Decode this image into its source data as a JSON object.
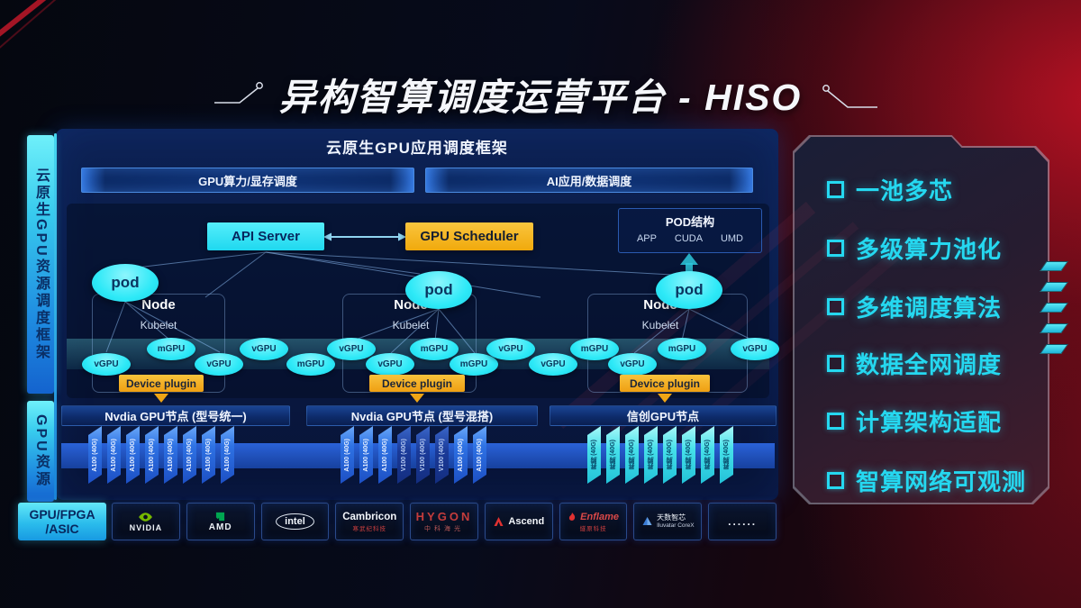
{
  "title": "异构智算调度运营平台 - HISO",
  "sidebar": {
    "framework": "云原生GPU资源调度框架",
    "resource": "GPU资源"
  },
  "scheduler_panel": {
    "header": "云原生GPU应用调度框架",
    "lanes": [
      {
        "label": "GPU算力/显存调度"
      },
      {
        "label": "AI应用/数据调度"
      }
    ],
    "api_server": "API Server",
    "gpu_scheduler": "GPU Scheduler",
    "pod_structure": {
      "title": "POD结构",
      "layers": [
        "APP",
        "CUDA",
        "UMD"
      ]
    },
    "nodes": [
      {
        "name": "Node",
        "agent": "Kubelet",
        "pod_label": "pod"
      },
      {
        "name": "Node",
        "agent": "Kubelet",
        "pod_label": "pod"
      },
      {
        "name": "Node",
        "agent": "Kubelet",
        "pod_label": "pod"
      }
    ],
    "gpu_units": [
      "vGPU",
      "mGPU",
      "vGPU",
      "vGPU",
      "mGPU",
      "vGPU",
      "vGPU",
      "mGPU",
      "mGPU",
      "vGPU",
      "vGPU",
      "mGPU",
      "vGPU",
      "mGPU",
      "vGPU"
    ],
    "device_plugin_label": "Device plugin",
    "node_groups": [
      {
        "label": "Nvdia GPU节点 (型号统一)",
        "cards": [
          "A100 (40G)",
          "A100 (40G)",
          "A100 (40G)",
          "A100 (40G)",
          "A100 (40G)",
          "A100 (40G)",
          "A100 (40G)",
          "A100 (40G)"
        ]
      },
      {
        "label": "Nvdia GPU节点 (型号混搭)",
        "cards": [
          "A100 (40G)",
          "A100 (40G)",
          "A100 (40G)",
          "V100 (40G)",
          "V100 (40G)",
          "V100 (40G)",
          "A100 (40G)",
          "A100 (40G)"
        ]
      },
      {
        "label": "信创GPU节点",
        "cards": [
          "昇腾 (40G)",
          "昇腾 (40G)",
          "昇腾 (40G)",
          "昇腾 (40G)",
          "昇腾 (40G)",
          "昇腾 (40G)",
          "昇腾 (40G)",
          "昇腾 (40G)"
        ]
      }
    ]
  },
  "hardware_bar": {
    "label_line1": "GPU/FPGA",
    "label_line2": "/ASIC",
    "vendors": [
      {
        "name": "NVIDIA",
        "icon": "nvidia-logo"
      },
      {
        "name": "AMD",
        "icon": "amd-logo"
      },
      {
        "name": "intel",
        "icon": "intel-logo"
      },
      {
        "name": "Cambricon",
        "sub": "寒武纪科技",
        "icon": "cambricon-logo"
      },
      {
        "name": "HYGON",
        "sub": "中科海光",
        "icon": "hygon-logo"
      },
      {
        "name": "Ascend",
        "icon": "ascend-logo"
      },
      {
        "name": "Enflame",
        "sub": "燧原科技",
        "icon": "enflame-logo"
      },
      {
        "name": "天数智芯",
        "sub": "Iluvatar CoreX",
        "icon": "iluvatar-logo"
      },
      {
        "name": "......",
        "icon": "dots"
      }
    ]
  },
  "features": [
    "一池多芯",
    "多级算力池化",
    "多维调度算法",
    "数据全网调度",
    "计算架构适配",
    "智算网络可观测"
  ],
  "colors": {
    "cyan": "#2de9f7",
    "amber": "#f6b40e",
    "panel_navy": "#0a1c48",
    "feature_cyan": "#25d8f0",
    "nvidia_green": "#76b900",
    "amd_green": "#00a651",
    "red_accent": "#c8102e",
    "card_blue": "#2e72e4",
    "card_cyan": "#46e0ea"
  }
}
